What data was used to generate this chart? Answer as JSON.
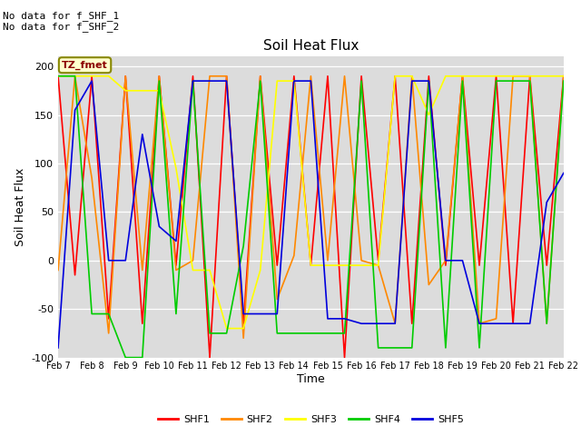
{
  "title": "Soil Heat Flux",
  "ylabel": "Soil Heat Flux",
  "xlabel": "Time",
  "ylim": [
    -100,
    210
  ],
  "yticks": [
    -100,
    -50,
    0,
    50,
    100,
    150,
    200
  ],
  "annotation_text": "No data for f_SHF_1\nNo data for f_SHF_2",
  "legend_label": "TZ_fmet",
  "legend_entries": [
    "SHF1",
    "SHF2",
    "SHF3",
    "SHF4",
    "SHF5"
  ],
  "legend_colors": [
    "#ff0000",
    "#ff8800",
    "#ffff00",
    "#00cc00",
    "#0000dd"
  ],
  "background_color": "#dcdcdc",
  "x_tick_labels": [
    "Feb 7",
    "Feb 8",
    "Feb 9",
    "Feb 10",
    "Feb 11",
    "Feb 12",
    "Feb 13",
    "Feb 14",
    "Feb 15",
    "Feb 16",
    "Feb 17",
    "Feb 18",
    "Feb 19",
    "Feb 20",
    "Feb 21",
    "Feb 22"
  ],
  "shf1": [
    190,
    -15,
    190,
    -60,
    190,
    -65,
    190,
    -5,
    190,
    -100,
    190,
    -65,
    190,
    -5,
    190,
    -5,
    190,
    -100,
    190,
    0,
    190,
    -65,
    190,
    -5,
    190,
    -5,
    190,
    -65,
    190,
    -5,
    190
  ],
  "shf2": [
    -10,
    190,
    85,
    -75,
    190,
    -10,
    190,
    -10,
    0,
    190,
    190,
    -80,
    190,
    -40,
    5,
    190,
    0,
    190,
    0,
    -5,
    -65,
    190,
    -25,
    0,
    190,
    -65,
    -60,
    190,
    190,
    -65,
    190
  ],
  "shf3": [
    190,
    190,
    190,
    190,
    175,
    175,
    175,
    95,
    -10,
    -10,
    -70,
    -70,
    -10,
    185,
    185,
    -5,
    -5,
    -5,
    -5,
    -5,
    190,
    190,
    150,
    190,
    190,
    190,
    190,
    190,
    190,
    190,
    190
  ],
  "shf4": [
    190,
    190,
    -55,
    -55,
    -100,
    -100,
    185,
    -55,
    185,
    -75,
    -75,
    15,
    185,
    -75,
    -75,
    -75,
    -75,
    -75,
    185,
    -90,
    -90,
    -90,
    185,
    -90,
    185,
    -90,
    185,
    185,
    185,
    -65,
    185
  ],
  "shf5": [
    -90,
    155,
    185,
    0,
    0,
    130,
    35,
    20,
    185,
    185,
    185,
    -55,
    -55,
    -55,
    185,
    185,
    -60,
    -60,
    -65,
    -65,
    -65,
    185,
    185,
    0,
    0,
    -65,
    -65,
    -65,
    -65,
    60,
    90
  ],
  "num_days": 15,
  "n_points": 31
}
